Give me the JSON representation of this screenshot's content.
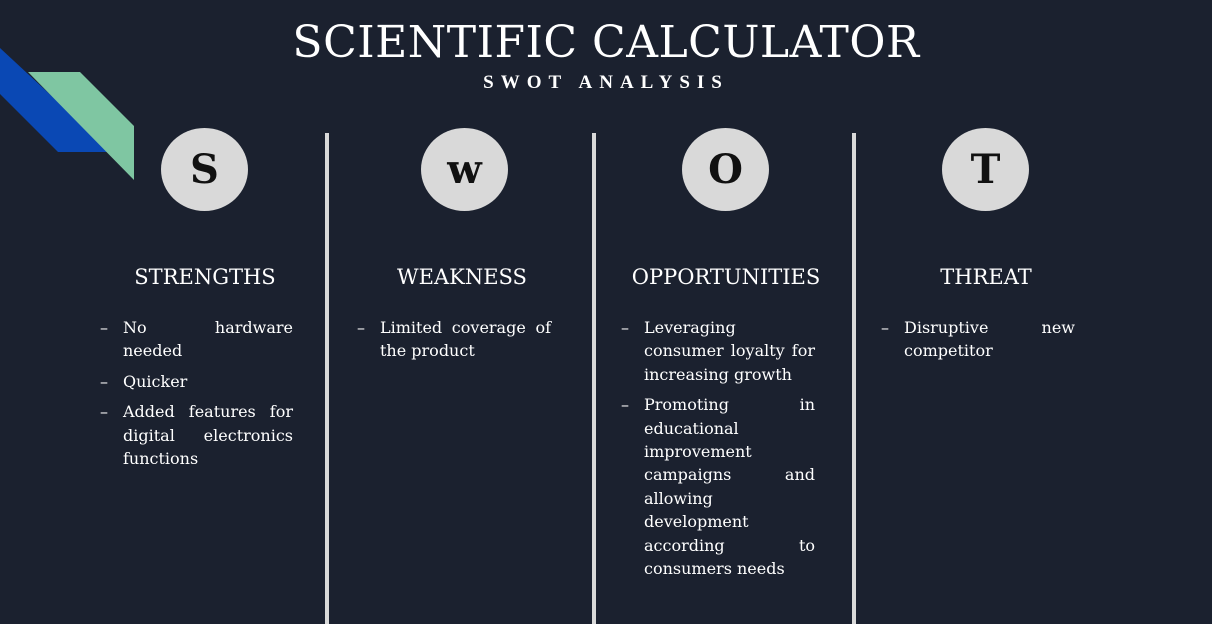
{
  "title": "SCIENTIFIC CALCULATOR",
  "subtitle": "SWOT ANALYSIS",
  "colors": {
    "background": "#1b212f",
    "circle": "#d9d9d9",
    "divider": "#d9d9d9",
    "accent_blue": "#0a48b4",
    "accent_green": "#7fc6a2"
  },
  "columns": [
    {
      "letter": "S",
      "heading": "STRENGTHS",
      "points": [
        "No hardware needed",
        "Quicker",
        "Added features for digital electronics functions"
      ]
    },
    {
      "letter": "w",
      "heading": "WEAKNESS",
      "points": [
        "Limited coverage of the product"
      ]
    },
    {
      "letter": "O",
      "heading": "OPPORTUNITIES",
      "points": [
        "Leveraging consumer loyalty for increasing growth",
        "Promoting in educational improvement campaigns and allowing development according to consumers needs"
      ]
    },
    {
      "letter": "T",
      "heading": "THREAT",
      "points": [
        "Disruptive new competitor"
      ]
    }
  ]
}
